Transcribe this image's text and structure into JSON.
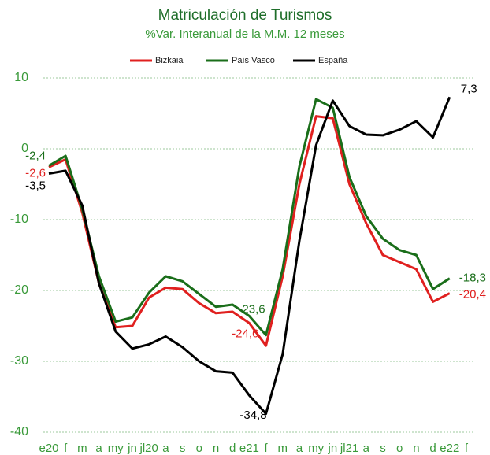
{
  "chart_data": {
    "type": "line",
    "title": "Matriculación de Turismos",
    "subtitle": "%Var. Interanual de la M.M. 12 meses",
    "categories": [
      "e20",
      "f",
      "m",
      "a",
      "my",
      "jn",
      "jl20",
      "a",
      "s",
      "o",
      "n",
      "d",
      "e21",
      "f",
      "m",
      "a",
      "my",
      "jn",
      "jl21",
      "a",
      "s",
      "o",
      "n",
      "d",
      "e22",
      "f"
    ],
    "ylim": [
      -40,
      10
    ],
    "yticks": [
      10,
      0,
      -10,
      -20,
      -30,
      -40
    ],
    "grid": true,
    "legend": "top",
    "series": [
      {
        "name": "Bizkaia",
        "color": "#e0201f",
        "values": [
          -2.6,
          -1.5,
          -9.0,
          -19.0,
          -25.2,
          -25.0,
          -21.0,
          -19.6,
          -19.8,
          -21.8,
          -23.2,
          -23.0,
          -24.6,
          -27.8,
          -18.0,
          -5.0,
          4.6,
          4.3,
          -5.0,
          -10.5,
          -15.0,
          -16.0,
          -17.0,
          -21.6,
          -20.4,
          null
        ],
        "value_labels": [
          "-2,6",
          null,
          null,
          null,
          null,
          null,
          null,
          null,
          null,
          null,
          null,
          null,
          "-24,6",
          null,
          null,
          null,
          null,
          null,
          null,
          null,
          null,
          null,
          null,
          null,
          "-20,4",
          null
        ]
      },
      {
        "name": "País Vasco",
        "color": "#1a6e1a",
        "values": [
          -2.4,
          -1.0,
          -8.5,
          -18.0,
          -24.4,
          -23.8,
          -20.3,
          -18.0,
          -18.7,
          -20.5,
          -22.3,
          -22.0,
          -23.6,
          -26.3,
          -17.0,
          -2.5,
          7.0,
          5.8,
          -4.0,
          -9.5,
          -12.7,
          -14.3,
          -15.0,
          -19.8,
          -18.3,
          null
        ],
        "value_labels": [
          "-2,4",
          null,
          null,
          null,
          null,
          null,
          null,
          null,
          null,
          null,
          null,
          null,
          "-23,6",
          null,
          null,
          null,
          null,
          null,
          null,
          null,
          null,
          null,
          null,
          null,
          "-18,3",
          null
        ]
      },
      {
        "name": "España",
        "color": "#000000",
        "values": [
          -3.5,
          -3.1,
          -8.0,
          -19.0,
          -25.8,
          -28.2,
          -27.6,
          -26.5,
          -28.0,
          -30.0,
          -31.4,
          -31.6,
          -34.8,
          -37.4,
          -29.0,
          -13.0,
          0.5,
          6.8,
          3.2,
          2.0,
          1.9,
          2.7,
          3.9,
          1.6,
          7.3,
          null
        ],
        "value_labels": [
          "-3,5",
          null,
          null,
          null,
          null,
          null,
          null,
          null,
          null,
          null,
          null,
          null,
          "-34,8",
          null,
          null,
          null,
          null,
          null,
          null,
          null,
          null,
          null,
          null,
          null,
          "7,3",
          null
        ]
      }
    ]
  }
}
